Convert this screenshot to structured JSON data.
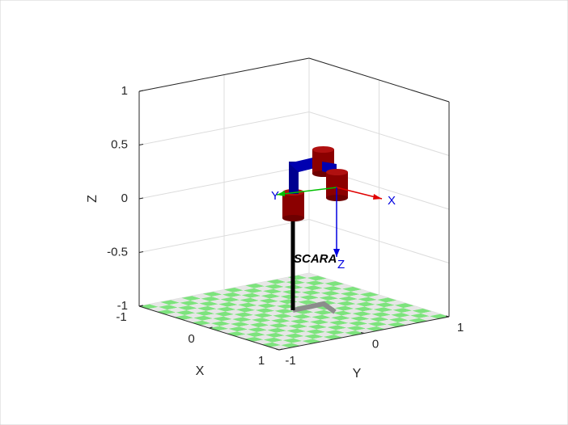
{
  "chart_data": {
    "type": "robot3d",
    "xlabel": "X",
    "ylabel": "Y",
    "zlabel": "Z",
    "xlim": [
      -1,
      1
    ],
    "ylim": [
      -1,
      1
    ],
    "zlim": [
      -1,
      1
    ],
    "xticks": [
      -1,
      0,
      1
    ],
    "yticks": [
      -1,
      0,
      1
    ],
    "zticks": [
      -1,
      -0.5,
      0,
      0.5,
      1
    ],
    "grid": true,
    "annotations": {
      "robot_name": "SCARA",
      "frame_x": "X",
      "frame_y": "Y",
      "frame_z": "Z"
    }
  }
}
